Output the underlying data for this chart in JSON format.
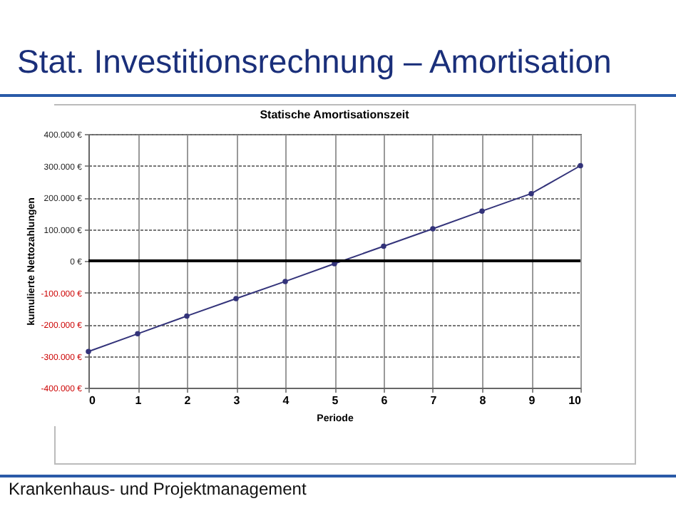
{
  "chart_data": {
    "type": "line",
    "title": "Stat. Investitionsrechnung – Amortisation",
    "subtitle": "Statische Amortisationszeit",
    "xlabel": "Periode",
    "ylabel": "kumulierte Nettozahlungen",
    "x": [
      0,
      1,
      2,
      3,
      4,
      5,
      6,
      7,
      8,
      9,
      10
    ],
    "series": [
      {
        "color": "#33337a",
        "values": [
          -286000,
          -230000,
          -174000,
          -119000,
          -65000,
          -9000,
          46000,
          101000,
          157000,
          212000,
          300000
        ]
      }
    ],
    "xlim": [
      0,
      10
    ],
    "xticks": [
      0,
      1,
      2,
      3,
      4,
      5,
      6,
      7,
      8,
      9,
      10
    ],
    "ylim": [
      -400000,
      400000
    ],
    "yticks": [
      {
        "value": -400000,
        "label": "-400.000 €"
      },
      {
        "value": -300000,
        "label": "-300.000 €"
      },
      {
        "value": -200000,
        "label": "-200.000 €"
      },
      {
        "value": -100000,
        "label": "-100.000 €"
      },
      {
        "value": 0,
        "label": "0 €"
      },
      {
        "value": 100000,
        "label": "100.000 €"
      },
      {
        "value": 200000,
        "label": "200.000 €"
      },
      {
        "value": 300000,
        "label": "300.000 €"
      },
      {
        "value": 400000,
        "label": "400.000 €"
      }
    ],
    "ref_lines": [
      {
        "axis": "y",
        "value": 0,
        "color": "#000000"
      }
    ],
    "grid": true,
    "marker": "circle",
    "line_style": "solid",
    "annotations": [
      "Krankenhaus- und Projektmanagement"
    ]
  }
}
